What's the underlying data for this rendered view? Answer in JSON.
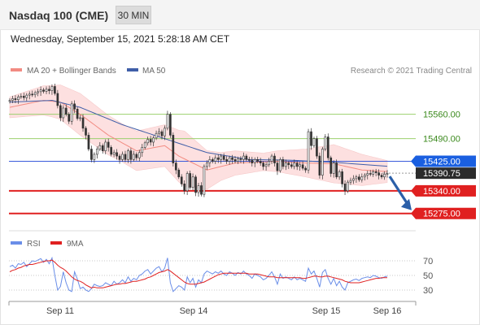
{
  "header": {
    "title": "Nasdaq 100 (CME)",
    "interval": "30 MIN"
  },
  "timestamp": "Wednesday, September 15, 2021 5:28:18 AM CET",
  "legend": {
    "ma20": "MA 20 + Bollinger Bands",
    "ma50": "MA 50",
    "rsi": "RSI",
    "ma9": "9MA"
  },
  "copyright": "Research © 2021 Trading Central",
  "colors": {
    "candle_up": "#2e7d32",
    "candle_down": "#c62828",
    "ma20": "#f28b82",
    "bollinger_fill": "#fde0e0",
    "ma50": "#3f5ea8",
    "resistance_line": "#9bd06e",
    "pivot_line": "#3b5bdb",
    "support_line": "#e02020",
    "current_price_bg": "#2b2b2b",
    "pivot_bg": "#1a5fe0",
    "support_bg": "#e02020",
    "arrow": "#2b5fa8",
    "rsi_line": "#6a8ee8",
    "rsi_ma9": "#e02020"
  },
  "chart_data": {
    "type": "candlestick",
    "x_tick_labels": [
      "Sep 11",
      "Sep 14",
      "Sep 15",
      "Sep 16"
    ],
    "ylim": [
      15230,
      15655
    ],
    "current_price": 15390.75,
    "levels": [
      {
        "label": "15560.00",
        "value": 15560,
        "kind": "resistance"
      },
      {
        "label": "15490.00",
        "value": 15490,
        "kind": "resistance"
      },
      {
        "label": "15425.00",
        "value": 15425,
        "kind": "pivot"
      },
      {
        "label": "15340.00",
        "value": 15340,
        "kind": "support"
      },
      {
        "label": "15275.00",
        "value": 15275,
        "kind": "support"
      }
    ],
    "current_price_label": "15390.75",
    "candles_close": [
      15600,
      15605,
      15602,
      15610,
      15612,
      15608,
      15615,
      15618,
      15616,
      15622,
      15625,
      15630,
      15626,
      15632,
      15628,
      15640,
      15620,
      15585,
      15550,
      15578,
      15560,
      15540,
      15590,
      15575,
      15548,
      15550,
      15520,
      15500,
      15460,
      15430,
      15445,
      15460,
      15470,
      15455,
      15480,
      15465,
      15445,
      15450,
      15440,
      15430,
      15445,
      15430,
      15455,
      15430,
      15445,
      15435,
      15450,
      15465,
      15478,
      15488,
      15480,
      15492,
      15505,
      15510,
      15498,
      15520,
      15560,
      15500,
      15420,
      15400,
      15380,
      15360,
      15340,
      15390,
      15350,
      15380,
      15335,
      15355,
      15330,
      15410,
      15420,
      15430,
      15425,
      15435,
      15430,
      15440,
      15430,
      15425,
      15435,
      15430,
      15425,
      15432,
      15430,
      15440,
      15430,
      15428,
      15420,
      15430,
      15425,
      15420,
      15410,
      15415,
      15425,
      15440,
      15420,
      15398,
      15430,
      15410,
      15420,
      15415,
      15410,
      15420,
      15410,
      15415,
      15405,
      15400,
      15510,
      15470,
      15490,
      15440,
      15385,
      15460,
      15495,
      15435,
      15390,
      15420,
      15380,
      15395,
      15360,
      15340,
      15365,
      15370,
      15375,
      15380,
      15372,
      15380,
      15385,
      15390,
      15388,
      15395,
      15392,
      15385,
      15380,
      15388,
      15390
    ],
    "ma20_anchors": [
      [
        0,
        15580
      ],
      [
        12,
        15600
      ],
      [
        18,
        15595
      ],
      [
        25,
        15560
      ],
      [
        35,
        15500
      ],
      [
        45,
        15455
      ],
      [
        55,
        15470
      ],
      [
        60,
        15440
      ],
      [
        70,
        15400
      ],
      [
        80,
        15420
      ],
      [
        95,
        15425
      ],
      [
        105,
        15420
      ],
      [
        115,
        15418
      ],
      [
        125,
        15400
      ],
      [
        135,
        15395
      ]
    ],
    "bb_width_anchors": [
      [
        0,
        30
      ],
      [
        15,
        45
      ],
      [
        25,
        60
      ],
      [
        40,
        55
      ],
      [
        55,
        60
      ],
      [
        62,
        80
      ],
      [
        75,
        40
      ],
      [
        90,
        25
      ],
      [
        105,
        40
      ],
      [
        115,
        55
      ],
      [
        125,
        45
      ],
      [
        135,
        30
      ]
    ],
    "ma50_anchors": [
      [
        0,
        15595
      ],
      [
        15,
        15600
      ],
      [
        25,
        15580
      ],
      [
        40,
        15530
      ],
      [
        55,
        15490
      ],
      [
        70,
        15450
      ],
      [
        85,
        15430
      ],
      [
        100,
        15428
      ],
      [
        115,
        15422
      ],
      [
        135,
        15410
      ]
    ],
    "rsi": {
      "yticks": [
        70,
        50,
        30
      ],
      "ylim": [
        20,
        80
      ],
      "values": [
        62,
        64,
        60,
        66,
        65,
        68,
        62,
        66,
        70,
        69,
        71,
        73,
        68,
        72,
        66,
        74,
        50,
        30,
        35,
        55,
        40,
        30,
        28,
        55,
        45,
        32,
        34,
        30,
        28,
        32,
        38,
        36,
        35,
        36,
        40,
        38,
        36,
        42,
        38,
        40,
        44,
        40,
        48,
        42,
        46,
        44,
        50,
        52,
        56,
        58,
        52,
        56,
        60,
        62,
        55,
        60,
        74,
        40,
        28,
        32,
        36,
        34,
        30,
        48,
        40,
        46,
        34,
        44,
        40,
        52,
        56,
        54,
        52,
        55,
        53,
        56,
        52,
        50,
        55,
        53,
        50,
        54,
        52,
        56,
        52,
        50,
        46,
        52,
        50,
        48,
        44,
        46,
        50,
        55,
        48,
        38,
        52,
        46,
        48,
        46,
        44,
        48,
        44,
        46,
        44,
        42,
        60,
        52,
        56,
        46,
        34,
        54,
        58,
        46,
        38,
        46,
        36,
        42,
        34,
        30,
        40,
        42,
        44,
        45,
        43,
        46,
        47,
        48,
        47,
        50,
        49,
        47,
        46,
        48,
        49
      ],
      "ma9_values": [
        55,
        57,
        58,
        60,
        61,
        63,
        64,
        65,
        65,
        66,
        67,
        68,
        69,
        70,
        70,
        71,
        68,
        64,
        61,
        59,
        56,
        52,
        48,
        45,
        43,
        42,
        40,
        37,
        35,
        33,
        34,
        33,
        33,
        33,
        34,
        35,
        36,
        37,
        38,
        38,
        39,
        39,
        40,
        41,
        42,
        42,
        43,
        44,
        45,
        47,
        48,
        50,
        52,
        54,
        55,
        56,
        58,
        56,
        53,
        50,
        47,
        44,
        41,
        39,
        38,
        38,
        38,
        39,
        40,
        41,
        43,
        45,
        47,
        49,
        51,
        52,
        53,
        53,
        53,
        53,
        53,
        53,
        53,
        53,
        53,
        52,
        52,
        52,
        52,
        51,
        50,
        49,
        48,
        48,
        48,
        47,
        47,
        47,
        47,
        47,
        47,
        47,
        47,
        47,
        46,
        46,
        47,
        48,
        49,
        49,
        48,
        48,
        49,
        49,
        48,
        47,
        46,
        45,
        44,
        42,
        41,
        40,
        40,
        40,
        40,
        41,
        42,
        43,
        44,
        45,
        46,
        46,
        47,
        47,
        47
      ]
    }
  }
}
